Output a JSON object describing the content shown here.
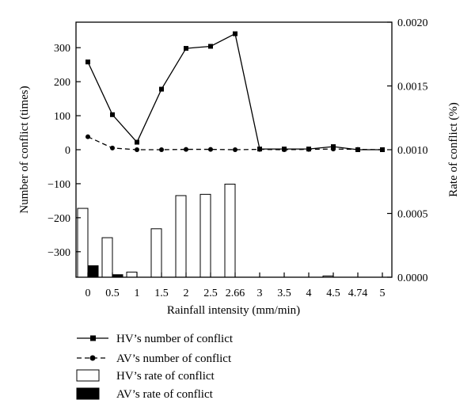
{
  "chart_data": {
    "type": "bar+line",
    "xlabel": "Rainfall intensity (mm/min)",
    "ylabel_left": "Number of conflict (times)",
    "ylabel_right": "Rate of conflict (%)",
    "categories": [
      "0",
      "0.5",
      "1",
      "1.5",
      "2",
      "2.5",
      "2.66",
      "3",
      "3.5",
      "4",
      "4.5",
      "4.74",
      "5"
    ],
    "left_axis": {
      "ylim": [
        -375,
        375
      ],
      "ticks": [
        -300,
        -200,
        -100,
        0,
        100,
        200,
        300
      ],
      "tick_labels": [
        "−300",
        "−200",
        "−100",
        "0",
        "100",
        "200",
        "300"
      ]
    },
    "right_axis": {
      "ylim": [
        0,
        0.002
      ],
      "ticks": [
        0,
        0.0005,
        0.001,
        0.0015,
        0.002
      ],
      "tick_labels": [
        "0.0000",
        "0.0005",
        "0.0010",
        "0.0015",
        "0.0020"
      ]
    },
    "series": [
      {
        "name": "HV’s number of conflict",
        "kind": "line",
        "axis": "left",
        "style": "solid",
        "marker": "square",
        "values": [
          258,
          103,
          22,
          178,
          298,
          304,
          341,
          2,
          2,
          2,
          9,
          0,
          0
        ]
      },
      {
        "name": "AV’s number of conflict",
        "kind": "line",
        "axis": "left",
        "style": "dashed",
        "marker": "circle",
        "values": [
          38,
          5,
          0,
          0,
          1,
          1,
          0,
          1,
          0,
          1,
          2,
          1,
          0
        ]
      },
      {
        "name": "HV’s rate of conflict",
        "kind": "bar",
        "axis": "right",
        "fill": "#ffffff",
        "values": [
          0.00054,
          0.00031,
          4e-05,
          0.00038,
          0.00064,
          0.00065,
          0.00073,
          0,
          0,
          0,
          1e-05,
          0,
          0
        ]
      },
      {
        "name": "AV’s rate of conflict",
        "kind": "bar",
        "axis": "right",
        "fill": "#000000",
        "values": [
          9e-05,
          2e-05,
          0,
          0,
          0,
          0,
          0,
          0,
          0,
          0,
          0,
          0,
          0
        ]
      }
    ],
    "legend_position": "bottom"
  }
}
